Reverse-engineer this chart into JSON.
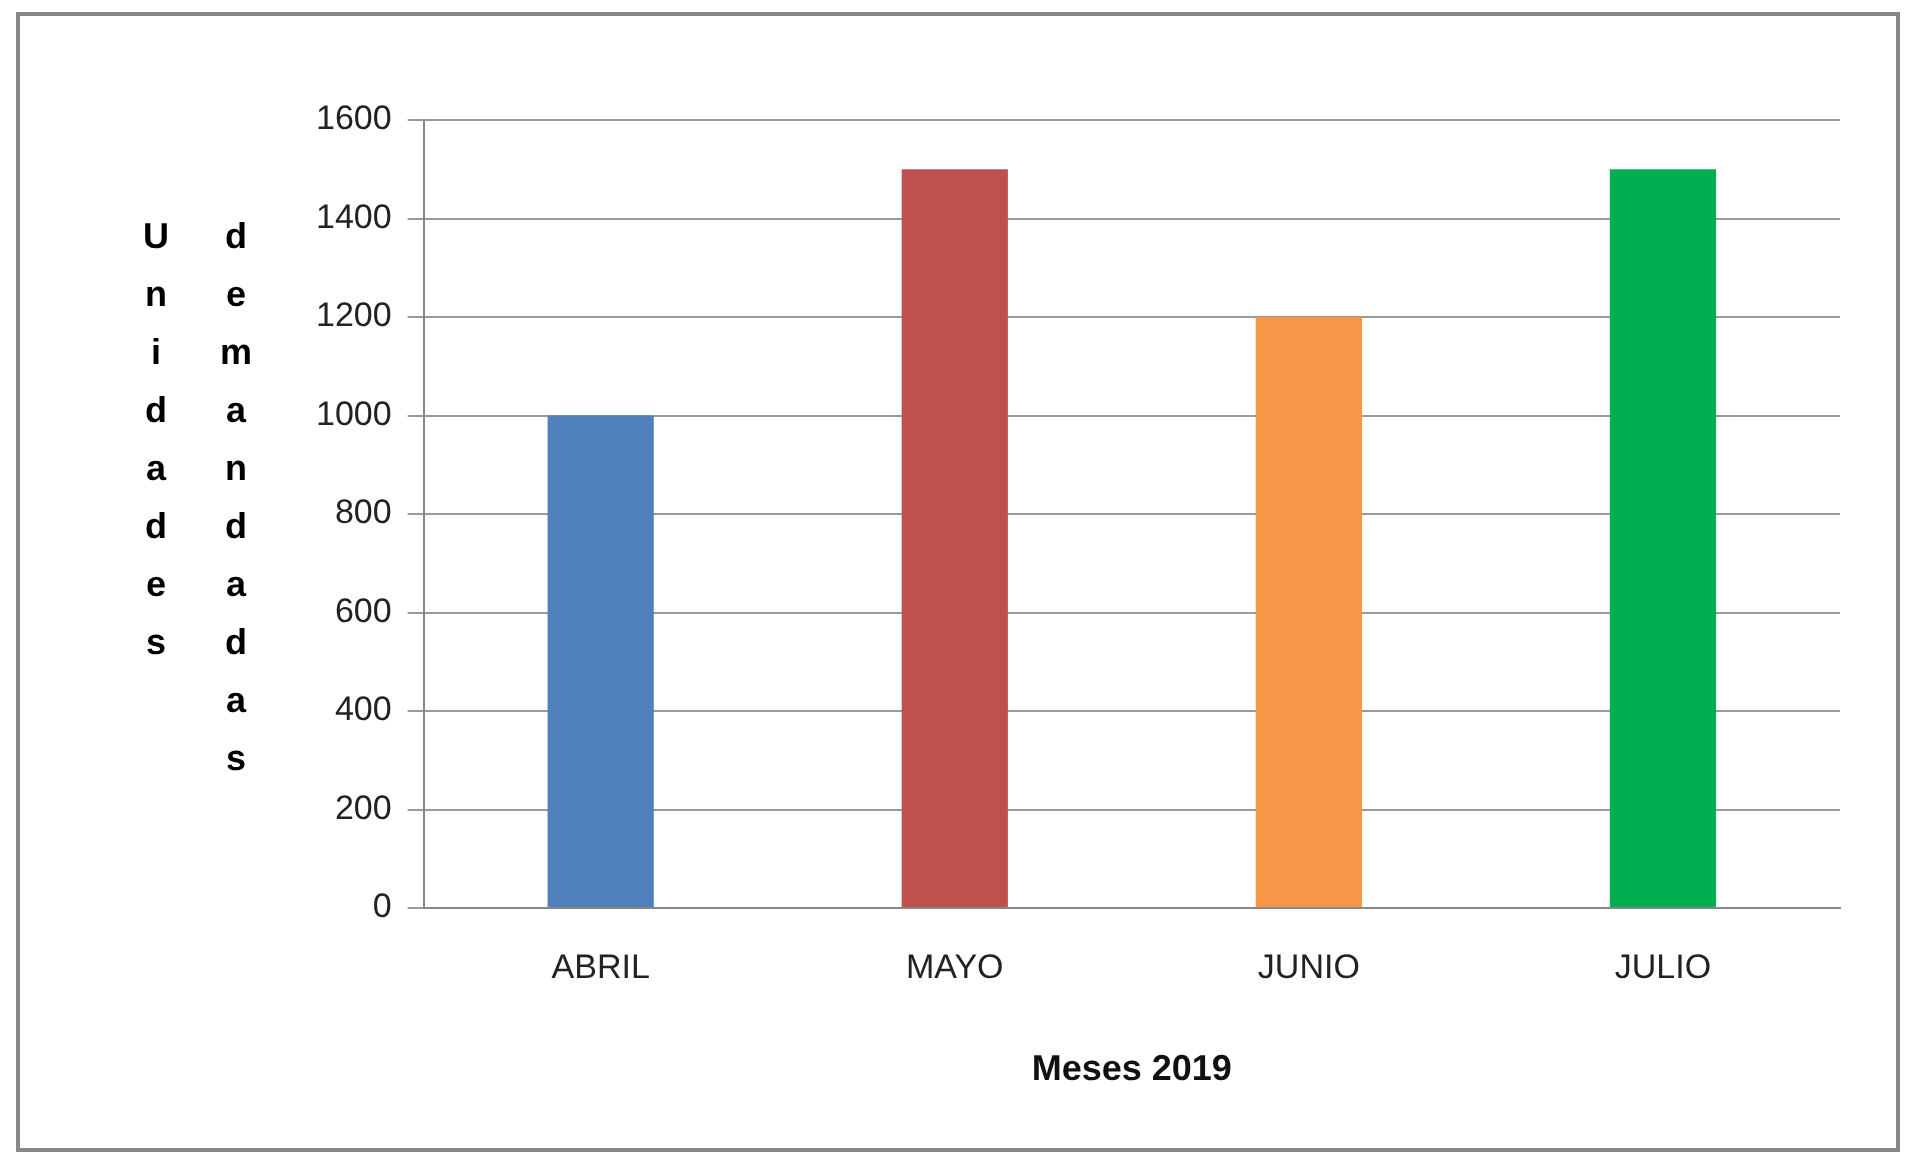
{
  "chart_data": {
    "type": "bar",
    "categories": [
      "ABRIL",
      "MAYO",
      "JUNIO",
      "JULIO"
    ],
    "values": [
      1000,
      1500,
      1200,
      1500
    ],
    "colors": [
      "#4f81bd",
      "#c0504d",
      "#f79646",
      "#00b050"
    ],
    "xlabel": "Meses 2019",
    "ylabel": "Unidades demandadas",
    "ylim": [
      0,
      1600
    ],
    "yticks": [
      0,
      200,
      400,
      600,
      800,
      1000,
      1200,
      1400,
      1600
    ],
    "grid": "y",
    "legend": false
  }
}
